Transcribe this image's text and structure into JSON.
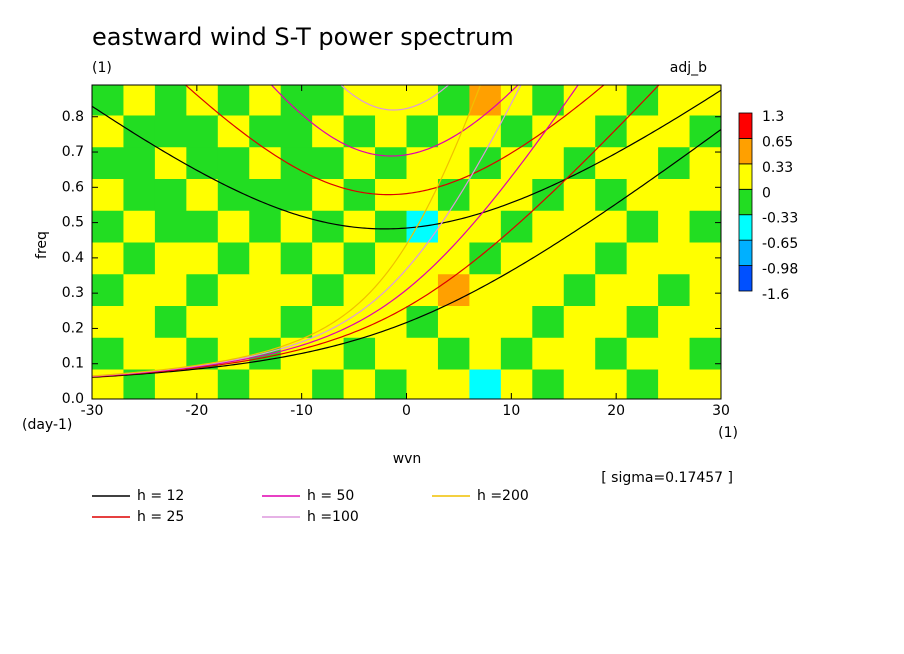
{
  "chart_data": {
    "type": "spectrum",
    "title": "eastward wind S-T power spectrum",
    "subtitle": "(1)",
    "run_label": "adj_b",
    "xlabel": "wvn",
    "ylabel": "freq",
    "y_unit": "(day-1)",
    "x_unit": "(1)",
    "annotation": "[ sigma=0.17457 ]",
    "xlim": [
      -30,
      30
    ],
    "ylim": [
      0,
      0.89
    ],
    "xticks": [
      -30,
      -20,
      -10,
      0,
      10,
      20,
      30
    ],
    "yticks": [
      {
        "value": 0,
        "label": "0.0"
      },
      0.1,
      0.2,
      0.3,
      0.4,
      0.5,
      0.6,
      0.7,
      0.8
    ],
    "levels": [
      -1.6,
      -0.98,
      -0.65,
      -0.33,
      0,
      0.33,
      0.65,
      1.3
    ],
    "level_colors": [
      "#0050ff",
      "#00b0ff",
      "#00ffff",
      "#22dd22",
      "#ffff00",
      "#ffa000",
      "#ff0000"
    ],
    "field": {
      "x": [
        -28.5,
        -25.5,
        -22.5,
        -19.5,
        -16.5,
        -13.5,
        -10.5,
        -7.5,
        -4.5,
        -1.5,
        1.5,
        4.5,
        7.5,
        10.5,
        13.5,
        16.5,
        19.5,
        22.5,
        25.5,
        28.5
      ],
      "y": [
        0.04,
        0.13,
        0.22,
        0.31,
        0.4,
        0.49,
        0.58,
        0.67,
        0.76,
        0.85
      ],
      "values": [
        [
          0.1,
          -0.1,
          0.1,
          0.1,
          -0.1,
          0.1,
          0.1,
          -0.1,
          0.1,
          -0.1,
          0.1,
          0.1,
          -0.4,
          0.1,
          -0.1,
          0.1,
          0.1,
          -0.1,
          0.1,
          0.1
        ],
        [
          -0.1,
          0.1,
          0.1,
          -0.1,
          0.1,
          -0.1,
          0.1,
          0.1,
          -0.1,
          0.1,
          0.1,
          -0.1,
          0.1,
          -0.1,
          0.1,
          0.1,
          -0.1,
          0.1,
          0.1,
          -0.1
        ],
        [
          0.1,
          0.1,
          -0.1,
          0.1,
          0.1,
          0.1,
          -0.1,
          0.1,
          0.1,
          0.1,
          -0.1,
          0.1,
          0.1,
          0.1,
          -0.1,
          0.1,
          0.1,
          -0.1,
          0.1,
          0.1
        ],
        [
          -0.1,
          0.1,
          0.1,
          -0.1,
          0.1,
          0.1,
          0.1,
          -0.1,
          0.1,
          0.1,
          0.1,
          0.4,
          0.1,
          0.1,
          0.1,
          -0.1,
          0.1,
          0.1,
          -0.1,
          0.1
        ],
        [
          0.1,
          -0.1,
          0.1,
          0.1,
          -0.1,
          0.1,
          -0.1,
          0.1,
          -0.1,
          0.1,
          0.1,
          0.1,
          -0.1,
          0.1,
          0.1,
          0.1,
          -0.1,
          0.1,
          0.1,
          0.1
        ],
        [
          -0.1,
          0.1,
          -0.1,
          -0.1,
          0.1,
          -0.1,
          0.1,
          -0.1,
          0.1,
          -0.1,
          -0.4,
          0.1,
          0.1,
          -0.1,
          0.1,
          0.1,
          0.1,
          -0.1,
          0.1,
          -0.1
        ],
        [
          0.1,
          -0.1,
          -0.1,
          0.1,
          -0.1,
          -0.1,
          -0.1,
          0.1,
          -0.1,
          0.1,
          0.1,
          -0.1,
          0.1,
          0.1,
          -0.1,
          0.1,
          -0.1,
          0.1,
          0.1,
          0.1
        ],
        [
          -0.1,
          -0.1,
          0.1,
          -0.1,
          -0.1,
          0.1,
          -0.1,
          -0.1,
          0.1,
          -0.1,
          0.1,
          0.1,
          -0.1,
          0.1,
          0.1,
          -0.1,
          0.1,
          0.1,
          -0.1,
          0.1
        ],
        [
          0.1,
          -0.1,
          -0.1,
          -0.1,
          0.1,
          -0.1,
          -0.1,
          0.1,
          -0.1,
          0.1,
          -0.1,
          0.1,
          0.1,
          -0.1,
          0.1,
          0.1,
          -0.1,
          0.1,
          0.1,
          -0.1
        ],
        [
          -0.1,
          0.1,
          -0.1,
          0.1,
          -0.1,
          0.1,
          -0.1,
          -0.1,
          0.1,
          0.1,
          0.1,
          -0.1,
          0.4,
          0.1,
          -0.1,
          0.1,
          0.1,
          -0.1,
          0.1,
          0.1
        ]
      ]
    },
    "series": [
      {
        "name": "h = 12",
        "h": 12,
        "color": "#000000"
      },
      {
        "name": "h = 25",
        "h": 25,
        "color": "#dd0000"
      },
      {
        "name": "h = 50",
        "h": 50,
        "color": "#e000b0"
      },
      {
        "name": "h =100",
        "h": 100,
        "color": "#dd99dd"
      },
      {
        "name": "h =200",
        "h": 200,
        "color": "#f0c000"
      }
    ]
  }
}
